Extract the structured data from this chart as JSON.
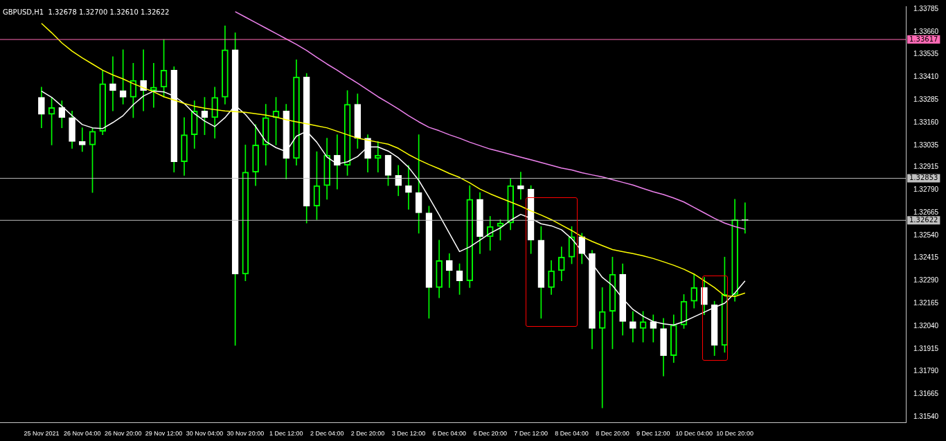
{
  "chart_data": {
    "type": "candlestick",
    "title": "GBPUSD,H1  1.32678 1.32700 1.32610 1.32622",
    "categories": [
      "25 Nov 2021",
      null,
      null,
      null,
      "26 Nov 04:00",
      null,
      null,
      null,
      "26 Nov 20:00",
      null,
      null,
      null,
      "29 Nov 12:00",
      null,
      null,
      null,
      "30 Nov 04:00",
      null,
      null,
      null,
      "30 Nov 20:00",
      null,
      null,
      null,
      "1 Dec 12:00",
      null,
      null,
      null,
      "2 Dec 04:00",
      null,
      null,
      null,
      "2 Dec 20:00",
      null,
      null,
      null,
      "3 Dec 12:00",
      null,
      null,
      null,
      "6 Dec 04:00",
      null,
      null,
      null,
      "6 Dec 20:00",
      null,
      null,
      null,
      "7 Dec 12:00",
      null,
      null,
      null,
      "8 Dec 04:00",
      null,
      null,
      null,
      "8 Dec 20:00",
      null,
      null,
      null,
      "9 Dec 12:00",
      null,
      null,
      null,
      "10 Dec 04:00",
      null,
      null,
      null,
      "10 Dec 20:00",
      null
    ],
    "color": "#00ff00",
    "colors": [
      "#ffffff",
      "#00ff00",
      "#ffffff",
      "#ffffff",
      "#ffffff",
      "#00ff00",
      "#00ff00",
      "#ffffff",
      "#ffffff",
      "#00ff00",
      "#ffffff",
      "#00ff00",
      "#00ff00",
      "#ffffff",
      "#00ff00",
      "#00ff00",
      "#ffffff",
      "#00ff00",
      "#00ff00",
      "#ffffff",
      "#00ff00",
      "#00ff00",
      "#00ff00",
      "#00ff00",
      "#ffffff",
      "#00ff00",
      "#ffffff",
      "#00ff00",
      "#00ff00",
      "#ffffff",
      "#00ff00",
      "#ffffff",
      "#ffffff",
      "#00ff00",
      "#ffffff",
      "#ffffff",
      "#ffffff",
      "#ffffff",
      "#ffffff",
      "#00ff00",
      "#ffffff",
      "#ffffff",
      "#00ff00",
      "#ffffff",
      "#00ff00",
      "#00ff00",
      "#00ff00",
      "#ffffff",
      "#ffffff",
      "#ffffff",
      "#00ff00",
      "#00ff00",
      "#00ff00",
      "#ffffff",
      "#ffffff",
      "#00ff00",
      "#00ff00",
      "#ffffff",
      "#ffffff",
      "#00ff00",
      "#ffffff",
      "#ffffff",
      "#00ff00",
      "#00ff00",
      "#00ff00",
      "#ffffff",
      "#ffffff",
      "#00ff00",
      "#00ff00",
      "#ffffff"
    ],
    "ohlc": [
      [
        1.33299,
        1.33355,
        1.33131,
        1.33205
      ],
      [
        1.33205,
        1.33299,
        1.33037,
        1.33243
      ],
      [
        1.33243,
        1.3328,
        1.33131,
        1.33187
      ],
      [
        1.33187,
        1.33224,
        1.33018,
        1.33056
      ],
      [
        1.33056,
        1.33131,
        1.33,
        1.33037
      ],
      [
        1.33037,
        1.33131,
        1.32775,
        1.33112
      ],
      [
        1.33112,
        1.33448,
        1.33093,
        1.33374
      ],
      [
        1.33374,
        1.33523,
        1.33224,
        1.33336
      ],
      [
        1.33336,
        1.33561,
        1.33261,
        1.33299
      ],
      [
        1.33299,
        1.33486,
        1.33187,
        1.33392
      ],
      [
        1.33392,
        1.33561,
        1.33224,
        1.33336
      ],
      [
        1.33336,
        1.33486,
        1.33243,
        1.33355
      ],
      [
        1.33355,
        1.33617,
        1.33299,
        1.33448
      ],
      [
        1.33448,
        1.33467,
        1.32887,
        1.32944
      ],
      [
        1.32944,
        1.33187,
        1.32869,
        1.33093
      ],
      [
        1.33093,
        1.3328,
        1.33018,
        1.33224
      ],
      [
        1.33224,
        1.33299,
        1.33093,
        1.33187
      ],
      [
        1.33187,
        1.33355,
        1.33074,
        1.33299
      ],
      [
        1.33299,
        1.33692,
        1.33261,
        1.33561
      ],
      [
        1.33561,
        1.33654,
        1.31934,
        1.32326
      ],
      [
        1.32326,
        1.33037,
        1.32289,
        1.32887
      ],
      [
        1.32887,
        1.33149,
        1.32813,
        1.33037
      ],
      [
        1.33037,
        1.33261,
        1.32925,
        1.33187
      ],
      [
        1.33187,
        1.33299,
        1.33037,
        1.33224
      ],
      [
        1.33224,
        1.33261,
        1.3285,
        1.32962
      ],
      [
        1.32962,
        1.33505,
        1.32925,
        1.33411
      ],
      [
        1.33411,
        1.3343,
        1.32607,
        1.327
      ],
      [
        1.327,
        1.33,
        1.32626,
        1.32813
      ],
      [
        1.32813,
        1.33074,
        1.32738,
        1.32981
      ],
      [
        1.32981,
        1.33093,
        1.32794,
        1.32925
      ],
      [
        1.32925,
        1.33336,
        1.32869,
        1.33261
      ],
      [
        1.33261,
        1.33318,
        1.33018,
        1.33074
      ],
      [
        1.33074,
        1.33093,
        1.32887,
        1.32962
      ],
      [
        1.32962,
        1.33056,
        1.32887,
        1.32981
      ],
      [
        1.32981,
        1.32981,
        1.32813,
        1.32869
      ],
      [
        1.32869,
        1.32925,
        1.32757,
        1.32813
      ],
      [
        1.32813,
        1.32925,
        1.32682,
        1.32775
      ],
      [
        1.32775,
        1.33093,
        1.32551,
        1.32663
      ],
      [
        1.32663,
        1.327,
        1.32083,
        1.32252
      ],
      [
        1.32252,
        1.32513,
        1.32196,
        1.32401
      ],
      [
        1.32401,
        1.32439,
        1.32252,
        1.32345
      ],
      [
        1.32345,
        1.32383,
        1.32214,
        1.32289
      ],
      [
        1.32289,
        1.32813,
        1.32252,
        1.32738
      ],
      [
        1.32738,
        1.32775,
        1.32439,
        1.32532
      ],
      [
        1.32532,
        1.32644,
        1.32457,
        1.32588
      ],
      [
        1.32588,
        1.32626,
        1.32513,
        1.32607
      ],
      [
        1.32607,
        1.3285,
        1.3257,
        1.32813
      ],
      [
        1.32813,
        1.32887,
        1.32738,
        1.32794
      ],
      [
        1.32794,
        1.32813,
        1.32439,
        1.32513
      ],
      [
        1.32513,
        1.32588,
        1.32083,
        1.32252
      ],
      [
        1.32252,
        1.32401,
        1.32214,
        1.32345
      ],
      [
        1.32345,
        1.32476,
        1.32289,
        1.3242
      ],
      [
        1.3242,
        1.32588,
        1.32383,
        1.32532
      ],
      [
        1.32532,
        1.32551,
        1.32383,
        1.32439
      ],
      [
        1.32439,
        1.32457,
        1.31915,
        1.32027
      ],
      [
        1.32027,
        1.32252,
        1.3159,
        1.32121
      ],
      [
        1.32121,
        1.3242,
        1.31915,
        1.32326
      ],
      [
        1.32326,
        1.32383,
        1.3199,
        1.32065
      ],
      [
        1.32065,
        1.32121,
        1.31952,
        1.32027
      ],
      [
        1.32027,
        1.32121,
        1.31952,
        1.32065
      ],
      [
        1.32065,
        1.32102,
        1.31952,
        1.32027
      ],
      [
        1.32027,
        1.32083,
        1.31765,
        1.31878
      ],
      [
        1.31878,
        1.32102,
        1.3184,
        1.32046
      ],
      [
        1.32046,
        1.32214,
        1.32027,
        1.32177
      ],
      [
        1.32177,
        1.32326,
        1.32139,
        1.32252
      ],
      [
        1.32252,
        1.32308,
        1.32102,
        1.32158
      ],
      [
        1.32158,
        1.32177,
        1.31878,
        1.31934
      ],
      [
        1.31934,
        1.3242,
        1.31896,
        1.32214
      ],
      [
        1.32214,
        1.32738,
        1.32177,
        1.32626
      ],
      [
        1.32626,
        1.32719,
        1.32551,
        1.32622
      ]
    ],
    "series": [
      {
        "type": "line",
        "color": "#ffff00",
        "values": [
          1.33706,
          1.33654,
          1.33598,
          1.33553,
          1.33516,
          1.33482,
          1.33448,
          1.33422,
          1.334,
          1.33374,
          1.33351,
          1.33329,
          1.33302,
          1.33284,
          1.33265,
          1.3325,
          1.33239,
          1.33231,
          1.33224,
          1.3322,
          1.33216,
          1.33209,
          1.33201,
          1.3319,
          1.33175,
          1.33164,
          1.33153,
          1.33142,
          1.33131,
          1.33112,
          1.33093,
          1.33074,
          1.33063,
          1.33052,
          1.33041,
          1.33018,
          1.32984,
          1.32955,
          1.32929,
          1.32906,
          1.3288,
          1.32858,
          1.32828,
          1.32794,
          1.32768,
          1.32745,
          1.32723,
          1.327,
          1.32674,
          1.32651,
          1.32626,
          1.32596,
          1.32566,
          1.32532,
          1.32506,
          1.32483,
          1.32461,
          1.3245,
          1.32439,
          1.32427,
          1.32412,
          1.32394,
          1.32375,
          1.32353,
          1.32326,
          1.32289,
          1.32252,
          1.32207,
          1.32203,
          1.32222
        ]
      },
      {
        "type": "line",
        "color": "#ffffff",
        "values": [
          1.33333,
          1.33299,
          1.3325,
          1.33198,
          1.33149,
          1.33131,
          1.33127,
          1.3316,
          1.33198,
          1.33258,
          1.33306,
          1.33333,
          1.33329,
          1.33306,
          1.33265,
          1.33209,
          1.33168,
          1.33138,
          1.33187,
          1.33254,
          1.33205,
          1.33138,
          1.33056,
          1.33022,
          1.33,
          1.33085,
          1.33112,
          1.33052,
          1.3297,
          1.32932,
          1.32944,
          1.32973,
          1.33026,
          1.33026,
          1.33003,
          1.32966,
          1.32914,
          1.32842,
          1.32749,
          1.32652,
          1.32551,
          1.3245,
          1.32476,
          1.32513,
          1.32551,
          1.3258,
          1.32622,
          1.32655,
          1.32633,
          1.32603,
          1.32592,
          1.3257,
          1.32521,
          1.32453,
          1.32383,
          1.32308,
          1.32263,
          1.32192,
          1.32132,
          1.32094,
          1.32065,
          1.32053,
          1.32046,
          1.32065,
          1.32091,
          1.32117,
          1.32143,
          1.32166,
          1.32222,
          1.32289
        ]
      },
      {
        "type": "line",
        "color": "#ee82ee",
        "values": [
          null,
          null,
          null,
          null,
          null,
          null,
          null,
          null,
          null,
          null,
          null,
          null,
          null,
          null,
          null,
          null,
          null,
          null,
          null,
          1.3377,
          1.3374,
          1.3371,
          1.3368,
          1.3365,
          1.3362,
          1.3359,
          1.33557,
          1.33519,
          1.33482,
          1.33448,
          1.33411,
          1.33377,
          1.3334,
          1.33302,
          1.33269,
          1.33235,
          1.33198,
          1.33164,
          1.33134,
          1.33115,
          1.33093,
          1.33074,
          1.33052,
          1.33033,
          1.33014,
          1.33,
          1.32985,
          1.3297,
          1.32955,
          1.3294,
          1.32925,
          1.3291,
          1.32899,
          1.32884,
          1.32872,
          1.32861,
          1.32846,
          1.32831,
          1.32816,
          1.32797,
          1.32779,
          1.32764,
          1.32745,
          1.32723,
          1.32693,
          1.32663,
          1.32633,
          1.32607,
          1.32588,
          1.32573
        ]
      }
    ],
    "ylim": [
      1.3151,
      1.338
    ],
    "yticks": [
      {
        "value": 1.33785,
        "label": "1.33785"
      },
      {
        "value": 1.3366,
        "label": "1.33660"
      },
      {
        "value": 1.33535,
        "label": "1.33535"
      },
      {
        "value": 1.3341,
        "label": "1.33410"
      },
      {
        "value": 1.33285,
        "label": "1.33285"
      },
      {
        "value": 1.3316,
        "label": "1.33160"
      },
      {
        "value": 1.33035,
        "label": "1.33035"
      },
      {
        "value": 1.32915,
        "label": "1.32915"
      },
      {
        "value": 1.3279,
        "label": "1.32790"
      },
      {
        "value": 1.32665,
        "label": "1.32665"
      },
      {
        "value": 1.3254,
        "label": "1.32540"
      },
      {
        "value": 1.32415,
        "label": "1.32415"
      },
      {
        "value": 1.3229,
        "label": "1.32290"
      },
      {
        "value": 1.32165,
        "label": "1.32165"
      },
      {
        "value": 1.3204,
        "label": "1.32040"
      },
      {
        "value": 1.31915,
        "label": "1.31915"
      },
      {
        "value": 1.3179,
        "label": "1.31790"
      },
      {
        "value": 1.31665,
        "label": "1.31665"
      },
      {
        "value": 1.3154,
        "label": "1.31540"
      }
    ],
    "marker": "none",
    "ref_lines": [
      {
        "axis": "y",
        "value": 1.33617,
        "label": "1.33617",
        "color": "#ff69b4"
      },
      {
        "axis": "y",
        "value": 1.32853,
        "label": "1.32853",
        "color": "#c0c0c0"
      },
      {
        "axis": "y",
        "value": 1.32622,
        "label": "1.32622",
        "color": "#c0c0c0"
      }
    ]
  }
}
